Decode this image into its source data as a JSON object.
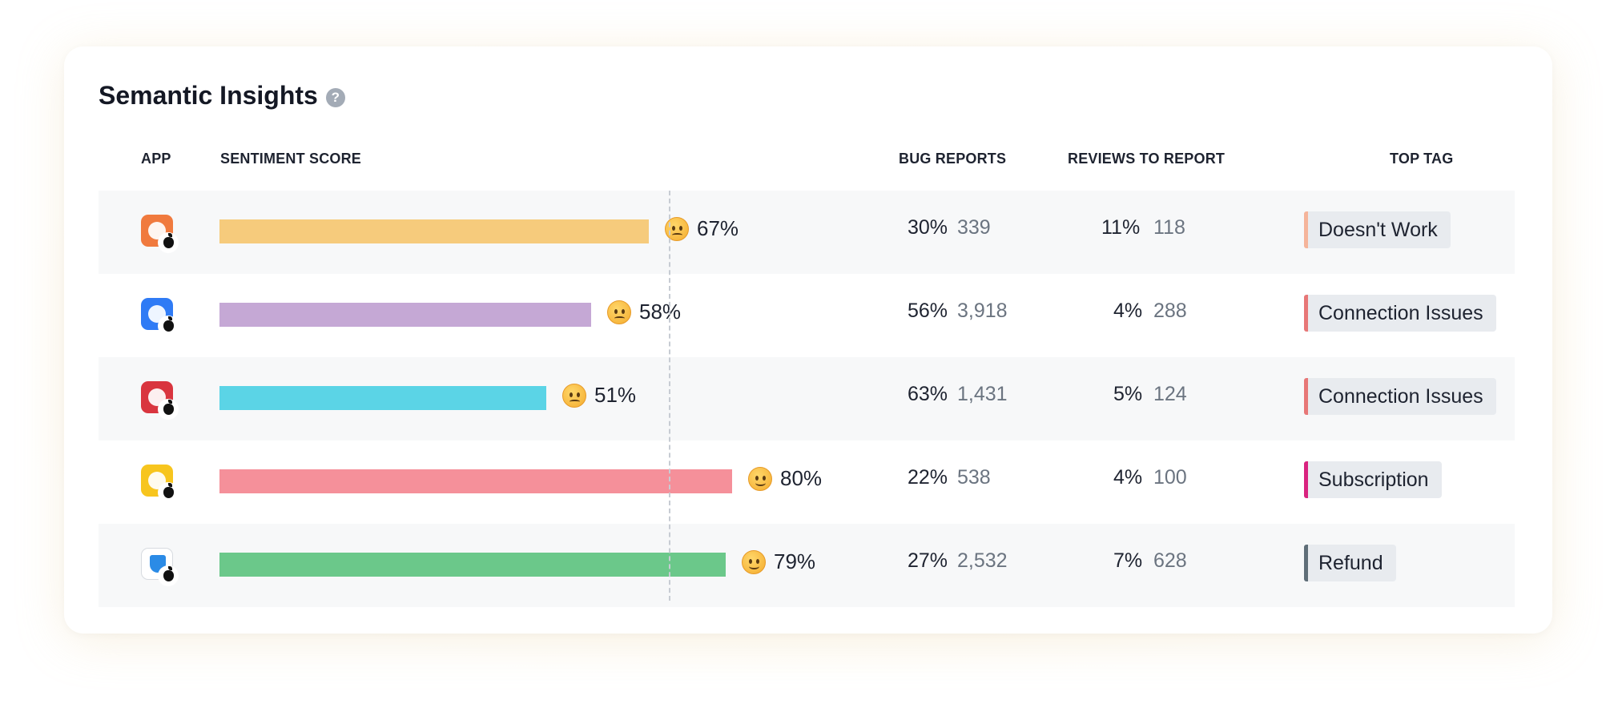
{
  "card": {
    "title": "Semantic Insights",
    "help_icon": "question-circle-icon"
  },
  "headers": {
    "app": "APP",
    "sentiment": "SENTIMENT SCORE",
    "bug_reports": "BUG REPORTS",
    "reviews_to_report": "REVIEWS TO REPORT",
    "top_tag": "TOP TAG"
  },
  "rows": [
    {
      "app_icon": "orange-leaf-app-icon",
      "app_color": "#f07a3e",
      "platform_icon": "apple-icon",
      "sentiment_value": 67,
      "sentiment_label": "67%",
      "sentiment_face": "confused-face-emoji",
      "bar_color": "#f6cb7c",
      "bug_pct": "30%",
      "bug_count": "339",
      "reviews_pct": "11%",
      "reviews_count": "118",
      "tag": "Doesn't Work",
      "tag_color": "#f5b49a"
    },
    {
      "app_icon": "blue-arc-app-icon",
      "app_color": "#2f7bf5",
      "platform_icon": "apple-icon",
      "sentiment_value": 58,
      "sentiment_label": "58%",
      "sentiment_face": "confused-face-emoji",
      "bar_color": "#c5a8d5",
      "bug_pct": "56%",
      "bug_count": "3,918",
      "reviews_pct": "4%",
      "reviews_count": "288",
      "tag": "Connection Issues",
      "tag_color": "#e77777"
    },
    {
      "app_icon": "red-lines-app-icon",
      "app_color": "#d9353f",
      "platform_icon": "apple-icon",
      "sentiment_value": 51,
      "sentiment_label": "51%",
      "sentiment_face": "confused-face-emoji",
      "bar_color": "#5bd4e6",
      "bug_pct": "63%",
      "bug_count": "1,431",
      "reviews_pct": "5%",
      "reviews_count": "124",
      "tag": "Connection Issues",
      "tag_color": "#e77777"
    },
    {
      "app_icon": "yellow-ghost-app-icon",
      "app_color": "#f7c51e",
      "platform_icon": "apple-icon",
      "sentiment_value": 80,
      "sentiment_label": "80%",
      "sentiment_face": "smiling-face-emoji",
      "bar_color": "#f5909a",
      "bug_pct": "22%",
      "bug_count": "538",
      "reviews_pct": "4%",
      "reviews_count": "100",
      "tag": "Subscription",
      "tag_color": "#d9237f"
    },
    {
      "app_icon": "shield-app-icon",
      "app_color": "#ffffff",
      "platform_icon": "apple-icon",
      "sentiment_value": 79,
      "sentiment_label": "79%",
      "sentiment_face": "smiling-face-emoji",
      "bar_color": "#6bc88a",
      "bug_pct": "27%",
      "bug_count": "2,532",
      "reviews_pct": "7%",
      "reviews_count": "628",
      "tag": "Refund",
      "tag_color": "#5f6e78"
    }
  ]
}
